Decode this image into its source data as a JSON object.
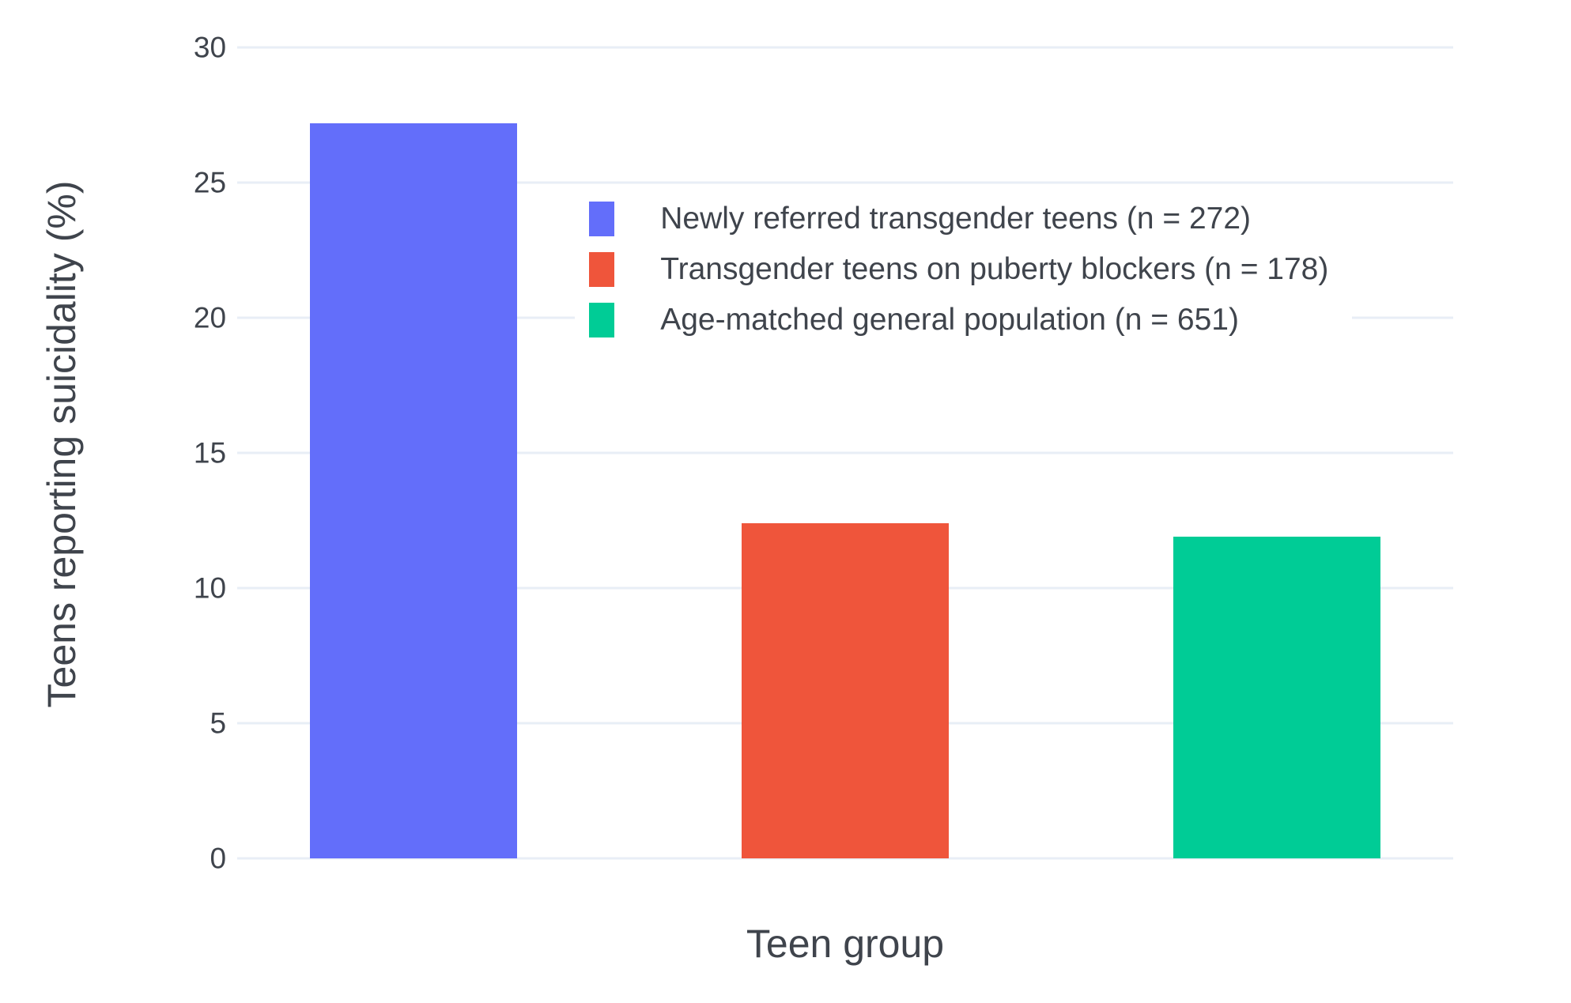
{
  "figure": {
    "background_color": "#ffffff",
    "text_color": "#3f444c",
    "grid_color": "#e8eef6"
  },
  "chart_data": {
    "type": "bar",
    "title": "",
    "xlabel": "Teen group",
    "ylabel": "Teens reporting suicidality (%)",
    "categories": [
      "Newly referred transgender teens (n = 272)",
      "Transgender teens on puberty blockers (n = 178)",
      "Age-matched general population (n = 651)"
    ],
    "values": [
      27.2,
      12.4,
      11.9
    ],
    "colors": [
      "#636EFA",
      "#EF553B",
      "#00CC96"
    ],
    "legend": [
      "Newly referred transgender teens (n = 272)",
      "Transgender teens on puberty blockers (n = 178)",
      "Age-matched general population (n = 651)"
    ],
    "legend_position": "inside upper-center-right",
    "yticks": [
      0,
      5,
      10,
      15,
      20,
      25,
      30
    ],
    "ylim": [
      0,
      30.6
    ],
    "grid": true
  }
}
